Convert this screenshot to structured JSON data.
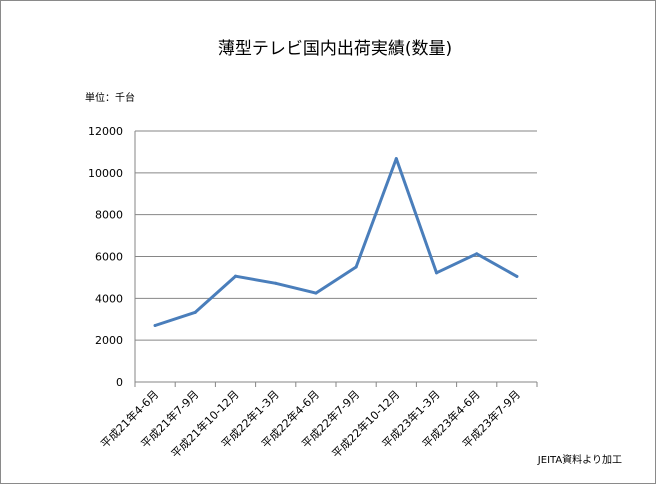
{
  "chart_data": {
    "type": "line",
    "title": "薄型テレビ国内出荷実績(数量)",
    "unit_label": "単位：千台",
    "source_note": "JEITA資料より加工",
    "categories": [
      "平成21年4-6月",
      "平成21年7-9月",
      "平成21年10-12月",
      "平成22年1-3月",
      "平成22年4-6月",
      "平成22年7-9月",
      "平成22年10-12月",
      "平成23年1-3月",
      "平成23年4-6月",
      "平成23年7-9月"
    ],
    "series": [
      {
        "values": [
          2700,
          3330,
          5060,
          4720,
          4250,
          5500,
          10680,
          5220,
          6130,
          5050
        ]
      }
    ],
    "ylim": [
      0,
      12000
    ],
    "yticks": [
      0,
      2000,
      4000,
      6000,
      8000,
      10000,
      12000
    ],
    "grid": true,
    "legend": "none",
    "line_color": "#4a7ebb",
    "grid_color": "#868686"
  }
}
